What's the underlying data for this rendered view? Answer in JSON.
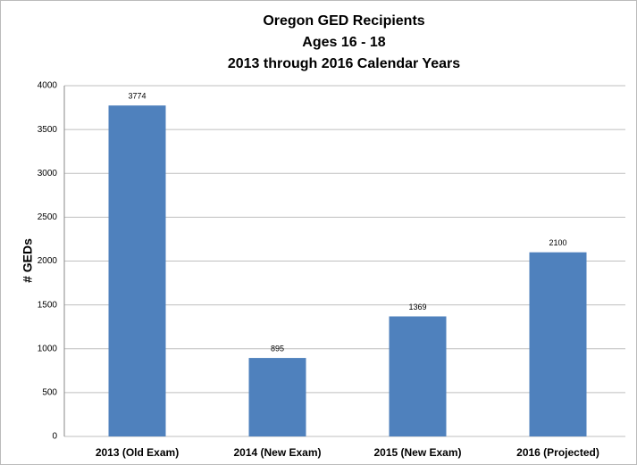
{
  "chart_data": {
    "type": "bar",
    "title": [
      "Oregon GED Recipients",
      "Ages 16 - 18",
      "2013 through 2016 Calendar Years"
    ],
    "y_label": "# GEDs",
    "categories": [
      "2013 (Old Exam)",
      "2014 (New Exam)",
      "2015 (New Exam)",
      "2016 (Projected)"
    ],
    "values": [
      3774,
      895,
      1369,
      2100
    ],
    "color": "#4f81bd",
    "ylim": [
      0,
      4000
    ],
    "yticks": [
      0,
      500,
      1000,
      1500,
      2000,
      2500,
      3000,
      3500,
      4000
    ],
    "grid": true
  }
}
